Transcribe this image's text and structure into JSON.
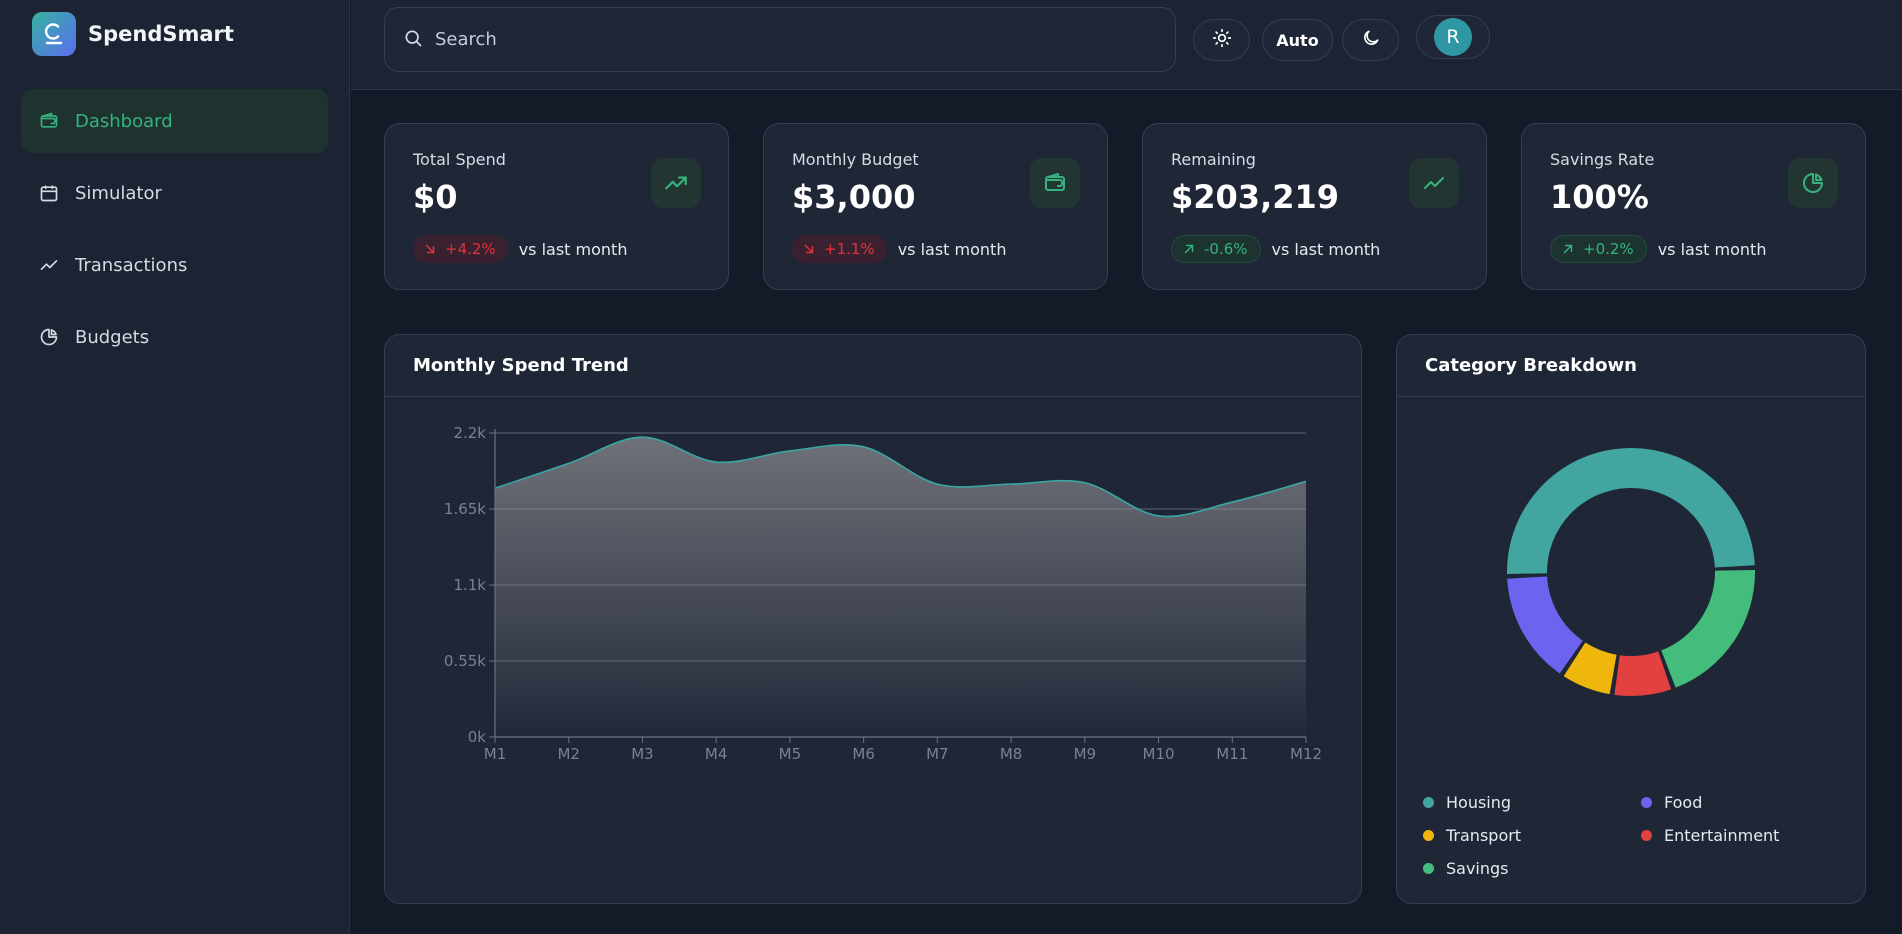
{
  "app": {
    "name": "SpendSmart"
  },
  "sidebar": {
    "items": [
      {
        "label": "Dashboard",
        "icon": "wallet-icon",
        "active": true
      },
      {
        "label": "Simulator",
        "icon": "calendar-icon",
        "active": false
      },
      {
        "label": "Transactions",
        "icon": "trend-line-icon",
        "active": false
      },
      {
        "label": "Budgets",
        "icon": "pie-chart-icon",
        "active": false
      }
    ]
  },
  "topbar": {
    "search_placeholder": "Search",
    "theme_auto_label": "Auto",
    "avatar_initial": "R"
  },
  "stats": [
    {
      "label": "Total Spend",
      "value": "$0",
      "delta": "+4.2%",
      "delta_dir": "down",
      "vs": "vs last month",
      "icon": "trending-up-icon"
    },
    {
      "label": "Monthly Budget",
      "value": "$3,000",
      "delta": "+1.1%",
      "delta_dir": "down",
      "vs": "vs last month",
      "icon": "wallet-icon"
    },
    {
      "label": "Remaining",
      "value": "$203,219",
      "delta": "-0.6%",
      "delta_dir": "up",
      "vs": "vs last month",
      "icon": "trend-line-icon"
    },
    {
      "label": "Savings Rate",
      "value": "100%",
      "delta": "+0.2%",
      "delta_dir": "up",
      "vs": "vs last month",
      "icon": "pie-chart-icon"
    }
  ],
  "colors": {
    "accent": "#35b37e",
    "negative": "#e0323e",
    "line": "#3aa6a3"
  },
  "trend_panel": {
    "title": "Monthly Spend Trend"
  },
  "breakdown_panel": {
    "title": "Category Breakdown"
  },
  "chart_data": [
    {
      "type": "area",
      "title": "Monthly Spend Trend",
      "x": [
        "M1",
        "M2",
        "M3",
        "M4",
        "M5",
        "M6",
        "M7",
        "M8",
        "M9",
        "M10",
        "M11",
        "M12"
      ],
      "y_ticks": [
        "0k",
        "0.55k",
        "1.1k",
        "1.65k",
        "2.2k"
      ],
      "ylim": [
        0,
        2200
      ],
      "series": [
        {
          "values": [
            1800,
            1980,
            2170,
            1990,
            2070,
            2100,
            1830,
            1830,
            1840,
            1600,
            1700,
            1850
          ]
        }
      ],
      "grid": true,
      "color": "#3aa6a3"
    },
    {
      "type": "pie",
      "title": "Category Breakdown",
      "categories": [
        "Housing",
        "Food",
        "Transport",
        "Entertainment",
        "Savings"
      ],
      "values": [
        50,
        15,
        7,
        8,
        20
      ],
      "colors": [
        "#42a5a0",
        "#6c63ef",
        "#efb60c",
        "#e2413f",
        "#43bc7c"
      ],
      "legend": "bottom"
    }
  ]
}
